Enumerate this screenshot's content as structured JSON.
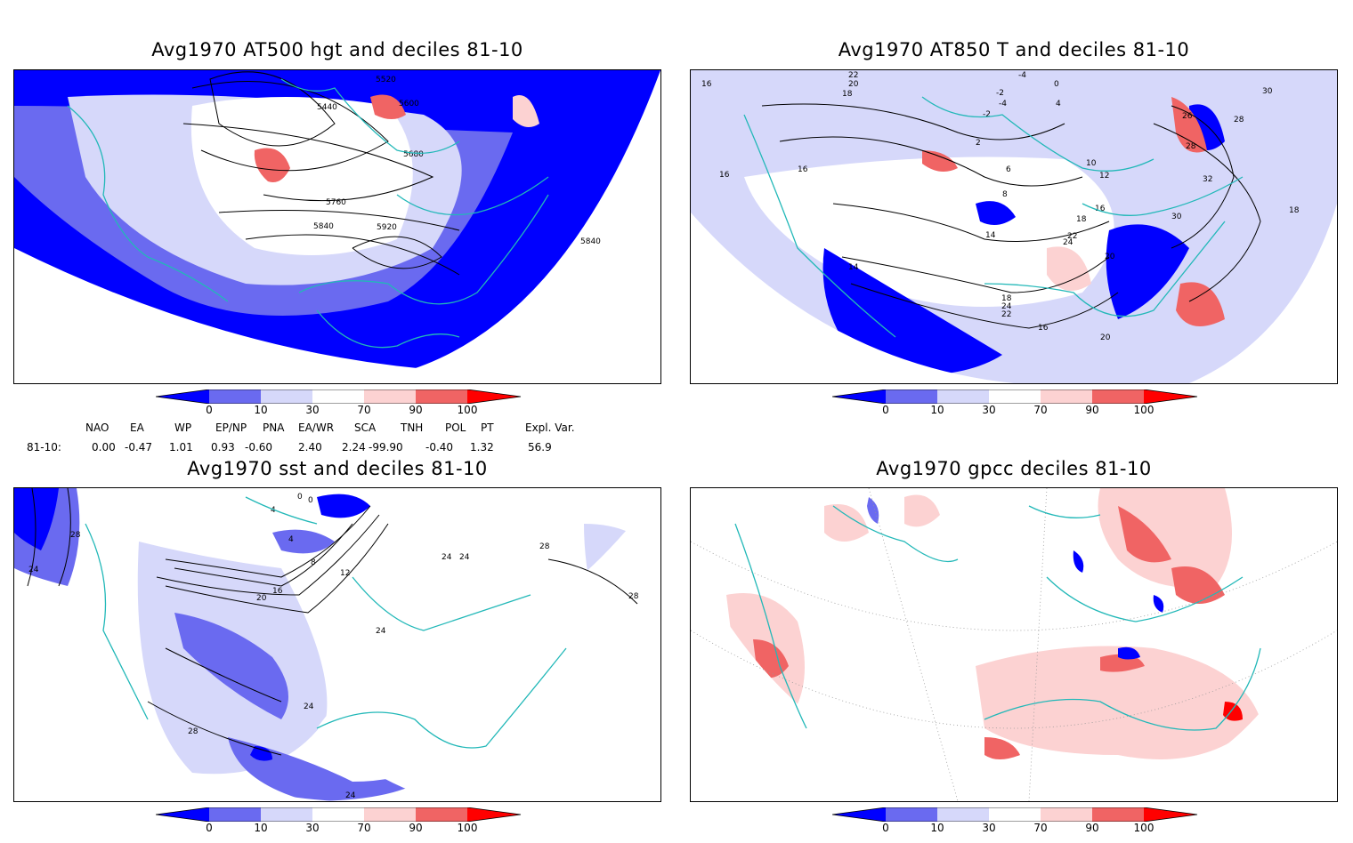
{
  "panels": [
    {
      "title": "Avg1970 AT500 hgt and deciles 81-10",
      "contour_labels": [
        "5520",
        "5600",
        "5440",
        "5680",
        "5760",
        "5840",
        "5920",
        "5840"
      ]
    },
    {
      "title": "Avg1970 AT850 T and deciles 81-10",
      "contour_labels": [
        "22",
        "20",
        "18",
        "-4",
        "0",
        "-2",
        "-4",
        "-2",
        "4",
        "2",
        "6",
        "8",
        "10",
        "12",
        "14",
        "16",
        "16",
        "16",
        "14",
        "16",
        "18",
        "20",
        "22",
        "24",
        "26",
        "28",
        "30",
        "32",
        "28",
        "30",
        "18",
        "16",
        "18",
        "24",
        "22",
        "20",
        "16"
      ]
    },
    {
      "title": "Avg1970 sst and deciles 81-10",
      "contour_labels": [
        "28",
        "24",
        "0",
        "0",
        "4",
        "4",
        "8",
        "12",
        "16",
        "20",
        "24",
        "28",
        "24",
        "28",
        "24",
        "28",
        "24",
        "24"
      ]
    },
    {
      "title": "Avg1970 gpcc deciles 81-10",
      "contour_labels": []
    }
  ],
  "colorbar": {
    "labels": [
      "0",
      "10",
      "30",
      "70",
      "90",
      "100"
    ],
    "colors": [
      "#0000ff",
      "#6a6af0",
      "#d6d8fa",
      "#ffffff",
      "#fcd2d2",
      "#f06464",
      "#ff0000"
    ]
  },
  "indices": {
    "row_label": "81-10:",
    "headers": [
      "NAO",
      "EA",
      "WP",
      "EP/NP",
      "PNA",
      "EA/WR",
      "SCA",
      "TNH",
      "POL",
      "PT",
      "Expl. Var."
    ],
    "values": [
      "0.00",
      "-0.47",
      "1.01",
      "0.93",
      "-0.60",
      "2.40",
      "2.24",
      "-99.90",
      "-0.40",
      "1.32",
      "56.9"
    ]
  },
  "colors": {
    "coast": "#22b8b8",
    "strong_blue": "#0000ff",
    "mid_blue": "#6a6af0",
    "light_blue": "#d6d8fa",
    "light_red": "#fcd2d2",
    "mid_red": "#f06464",
    "strong_red": "#ff0000"
  }
}
